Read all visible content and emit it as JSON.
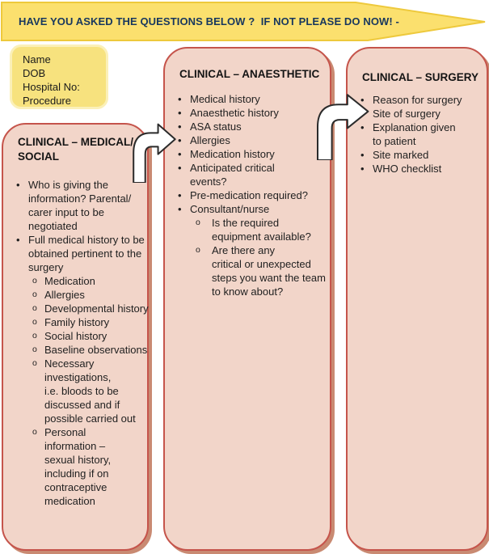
{
  "banner": {
    "text": "HAVE YOU ASKED THE QUESTIONS BELOW ?  IF NOT PLEASE DO NOW! -"
  },
  "patient_box": {
    "text": "Name\nDOB\nHospital No:\nProcedure"
  },
  "bullets": {
    "level1": "•",
    "level2": "o"
  },
  "columns": [
    {
      "id": "clinical-medical-social",
      "title": "CLINICAL – MEDICAL/\nSOCIAL",
      "items": [
        {
          "level": 1,
          "text": "Who is giving the\ninformation? Parental/\ncarer input to be\nnegotiated"
        },
        {
          "level": 1,
          "text": "Full medical history to be\nobtained pertinent to the\nsurgery"
        },
        {
          "level": 2,
          "text": "Medication"
        },
        {
          "level": 2,
          "text": "Allergies"
        },
        {
          "level": 2,
          "text": "Developmental history"
        },
        {
          "level": 2,
          "text": "Family history"
        },
        {
          "level": 2,
          "text": "Social history"
        },
        {
          "level": 2,
          "text": "Baseline observations"
        },
        {
          "level": 2,
          "text": "Necessary\ninvestigations,\ni.e. bloods to be\ndiscussed and if\npossible carried out"
        },
        {
          "level": 2,
          "text": "Personal\ninformation –\nsexual history,\nincluding if on\ncontraceptive\nmedication"
        }
      ]
    },
    {
      "id": "clinical-anaesthetic",
      "title": "CLINICAL – ANAESTHETIC",
      "items": [
        {
          "level": 1,
          "text": "Medical history"
        },
        {
          "level": 1,
          "text": "Anaesthetic history"
        },
        {
          "level": 1,
          "text": "ASA status"
        },
        {
          "level": 1,
          "text": "Allergies"
        },
        {
          "level": 1,
          "text": "Medication history"
        },
        {
          "level": 1,
          "text": "Anticipated critical\nevents?"
        },
        {
          "level": 1,
          "text": "Pre-medication required?"
        },
        {
          "level": 1,
          "text": "Consultant/nurse"
        },
        {
          "level": 2,
          "text": "Is the required\nequipment available?"
        },
        {
          "level": 2,
          "text": "Are there any\ncritical or unexpected\nsteps you want the team\nto know about?"
        }
      ]
    },
    {
      "id": "clinical-surgery",
      "title": "CLINICAL – SURGERY",
      "items": [
        {
          "level": 1,
          "text": "Reason for surgery"
        },
        {
          "level": 1,
          "text": "Site of surgery"
        },
        {
          "level": 1,
          "text": "Explanation given\nto patient"
        },
        {
          "level": 1,
          "text": "Site marked"
        },
        {
          "level": 1,
          "text": "WHO checklist"
        }
      ]
    }
  ],
  "colors": {
    "banner-fill": "#fbe06e",
    "banner-border": "#eec93c",
    "banner-text": "#17375e",
    "box-fill": "#f7e27e",
    "box-border": "#fbf0b8",
    "column-fill": "#f2d5c9",
    "column-border": "#c5544b",
    "column-shadow": "#c98a72",
    "arrow-fill": "#ffffff",
    "arrow-outline": "#2b2b2b",
    "body-text": "#1f1f1f"
  }
}
